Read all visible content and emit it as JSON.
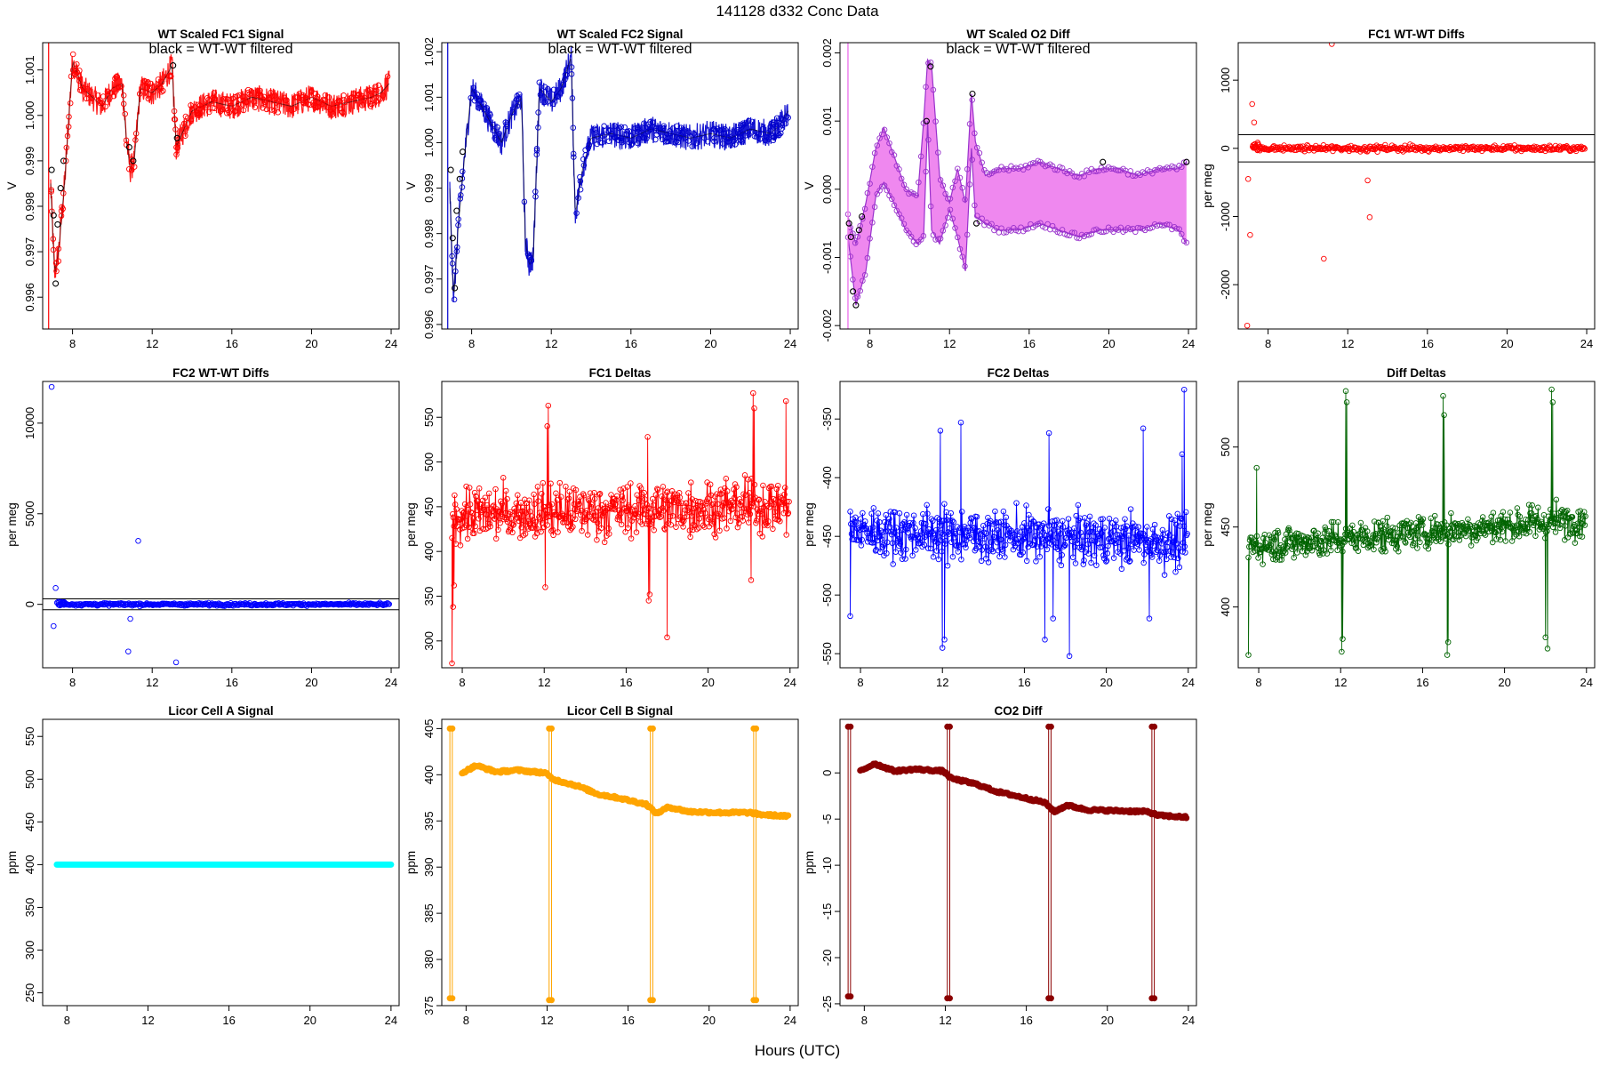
{
  "figure": {
    "title": "141128    d332    Conc Data",
    "xlabel": "Hours (UTC)"
  },
  "chart_data": [
    {
      "type": "line",
      "title": "WT Scaled FC1 Signal",
      "ylabel": "V",
      "annotation": "black = WT-WT filtered",
      "color": "#ff0000",
      "xlim": [
        6.5,
        24.4
      ],
      "ylim": [
        0.9953,
        1.0016
      ],
      "xticks": [
        8,
        12,
        16,
        20,
        24
      ],
      "yticks": [
        0.996,
        0.997,
        0.998,
        0.999,
        1.0,
        1.001
      ],
      "ytick_labels": [
        "0.996",
        "0.997",
        "0.998",
        "0.999",
        "1.000",
        "1.001"
      ],
      "series": [
        {
          "style": "band",
          "x": [
            6.9,
            7.1,
            7.3,
            7.6,
            8.0,
            8.5,
            9.0,
            9.5,
            10.0,
            10.5,
            10.7,
            10.9,
            11.1,
            11.4,
            12.0,
            12.5,
            13.0,
            13.2,
            13.6,
            14.0,
            15.0,
            16.0,
            17.0,
            18.0,
            19.0,
            20.0,
            21.0,
            22.0,
            23.0,
            23.5,
            23.9
          ],
          "values": [
            0.9985,
            0.9965,
            0.997,
            0.9985,
            1.0012,
            1.0006,
            1.0004,
            1.0002,
            1.0006,
            1.0007,
            0.9995,
            0.9988,
            0.999,
            1.0006,
            1.0005,
            1.0007,
            1.0011,
            0.9993,
            0.9997,
            1.0001,
            1.0003,
            1.0002,
            1.0004,
            1.0003,
            1.0002,
            1.0004,
            1.0002,
            1.0003,
            1.0004,
            1.0005,
            1.0007
          ],
          "spread": 0.0003
        },
        {
          "style": "points",
          "name": "",
          "color": "#000000",
          "x": [
            6.95,
            7.05,
            7.15,
            7.25,
            7.4,
            7.55,
            10.85,
            11.05,
            13.05,
            13.25
          ],
          "values": [
            0.9988,
            0.9978,
            0.9963,
            0.9976,
            0.9984,
            0.999,
            0.9993,
            0.999,
            1.0011,
            0.9995
          ]
        }
      ]
    },
    {
      "type": "line",
      "title": "WT Scaled FC2 Signal",
      "ylabel": "V",
      "annotation": "black = WT-WT filtered",
      "color": "#0000cd",
      "xlim": [
        6.5,
        24.4
      ],
      "ylim": [
        0.9959,
        1.0022
      ],
      "xticks": [
        8,
        12,
        16,
        20,
        24
      ],
      "yticks": [
        0.996,
        0.997,
        0.998,
        0.999,
        1.0,
        1.001,
        1.002
      ],
      "ytick_labels": [
        "0.996",
        "0.997",
        "0.998",
        "0.999",
        "1.000",
        "1.001",
        "1.002"
      ],
      "series": [
        {
          "style": "band",
          "x": [
            6.9,
            7.1,
            7.3,
            7.6,
            8.0,
            8.5,
            9.0,
            9.5,
            10.0,
            10.5,
            10.7,
            10.9,
            11.1,
            11.4,
            12.0,
            12.5,
            13.0,
            13.2,
            13.6,
            14.0,
            15.0,
            16.0,
            17.0,
            18.0,
            19.0,
            20.0,
            21.0,
            22.0,
            23.0,
            23.5,
            23.9
          ],
          "values": [
            0.999,
            0.9965,
            0.998,
            0.9995,
            1.0012,
            1.0008,
            1.0004,
            1.0,
            1.0006,
            1.001,
            0.9978,
            0.9973,
            0.9975,
            1.0012,
            1.0009,
            1.0012,
            1.0019,
            0.9984,
            0.9995,
            1.0001,
            1.0002,
            1.0001,
            1.0003,
            1.0002,
            1.0001,
            1.0002,
            1.0001,
            1.0003,
            1.0002,
            1.0004,
            1.0007
          ],
          "spread": 0.0003
        },
        {
          "style": "points",
          "name": "",
          "color": "#000000",
          "x": [
            6.95,
            7.05,
            7.15,
            7.25,
            7.4,
            7.55
          ],
          "values": [
            0.9994,
            0.9979,
            0.9968,
            0.9985,
            0.9992,
            0.9998
          ]
        }
      ]
    },
    {
      "type": "line",
      "title": "WT Scaled O2 Diff",
      "ylabel": "V",
      "annotation": "black = WT-WT filtered",
      "color": "#9932cc",
      "band_color": "#ee82ee",
      "xlim": [
        6.5,
        24.4
      ],
      "ylim": [
        -0.00205,
        0.00215
      ],
      "xticks": [
        8,
        12,
        16,
        20,
        24
      ],
      "yticks": [
        -0.002,
        -0.001,
        0.0,
        0.001,
        0.002
      ],
      "ytick_labels": [
        "-0.002",
        "-0.001",
        "0.000",
        "0.001",
        "0.002"
      ],
      "series": [
        {
          "style": "envelope",
          "x": [
            6.9,
            7.3,
            7.8,
            8.3,
            8.7,
            9.2,
            9.8,
            10.4,
            10.7,
            10.9,
            11.1,
            11.5,
            12.0,
            12.4,
            12.8,
            13.1,
            13.3,
            13.8,
            14.5,
            15.5,
            16.5,
            17.5,
            18.5,
            19.5,
            20.5,
            21.5,
            22.5,
            23.5,
            23.9
          ],
          "upper": [
            -0.0004,
            -0.0008,
            -0.0002,
            0.0006,
            0.0009,
            0.0005,
            0.0,
            -0.0001,
            0.001,
            0.0019,
            0.0018,
            0.0002,
            -0.0002,
            0.0003,
            -0.0002,
            0.0014,
            0.0007,
            0.0002,
            0.0003,
            0.0003,
            0.0004,
            0.0003,
            0.0002,
            0.0003,
            0.0003,
            0.0002,
            0.0003,
            0.0003,
            0.0004
          ],
          "lower": [
            -0.0007,
            -0.0017,
            -0.0012,
            -0.0001,
            0.0001,
            -0.0002,
            -0.0006,
            -0.0008,
            -0.0007,
            0.001,
            -0.0006,
            -0.0008,
            -0.0003,
            -0.0007,
            -0.0012,
            0.0006,
            -0.0004,
            -0.0005,
            -0.0006,
            -0.0006,
            -0.0005,
            -0.0006,
            -0.0007,
            -0.0006,
            -0.0006,
            -0.0006,
            -0.0005,
            -0.0006,
            -0.0008
          ]
        },
        {
          "style": "points",
          "name": "",
          "color": "#000000",
          "x": [
            6.95,
            7.05,
            7.15,
            7.3,
            7.45,
            7.6,
            10.85,
            11.05,
            13.15,
            13.35,
            19.7,
            23.9
          ],
          "values": [
            -0.0005,
            -0.0007,
            -0.0015,
            -0.0017,
            -0.0006,
            -0.0004,
            0.001,
            0.0018,
            0.0014,
            -0.0005,
            0.0004,
            0.0004
          ]
        }
      ]
    },
    {
      "type": "scatter",
      "title": "FC1 WT-WT Diffs",
      "ylabel": "per meg",
      "color": "#ff0000",
      "xlim": [
        6.5,
        24.4
      ],
      "ylim": [
        -2650,
        1550
      ],
      "xticks": [
        8,
        12,
        16,
        20,
        24
      ],
      "yticks": [
        -2000,
        -1000,
        0,
        1000
      ],
      "ytick_labels": [
        "-2000",
        "-1000",
        "0",
        "1000"
      ],
      "hlines": [
        200,
        -200
      ],
      "noise": 35,
      "spikes": [
        {
          "x": 6.95,
          "y": -2600
        },
        {
          "x": 7.1,
          "y": -1270
        },
        {
          "x": 7.0,
          "y": -450
        },
        {
          "x": 7.2,
          "y": 650
        },
        {
          "x": 7.3,
          "y": 380
        },
        {
          "x": 10.8,
          "y": -1620
        },
        {
          "x": 11.2,
          "y": 1530
        },
        {
          "x": 13.0,
          "y": -470
        },
        {
          "x": 13.1,
          "y": -1010
        }
      ]
    },
    {
      "type": "scatter",
      "title": "FC2 WT-WT Diffs",
      "ylabel": "per meg",
      "color": "#0000ff",
      "xlim": [
        6.5,
        24.4
      ],
      "ylim": [
        -3500,
        12300
      ],
      "xticks": [
        8,
        12,
        16,
        20,
        24
      ],
      "yticks": [
        0,
        5000,
        10000
      ],
      "ytick_labels": [
        "0",
        "5000",
        "10000"
      ],
      "hlines": [
        300,
        -300
      ],
      "noise": 60,
      "spikes": [
        {
          "x": 6.95,
          "y": 12000
        },
        {
          "x": 7.05,
          "y": -1200
        },
        {
          "x": 7.15,
          "y": 900
        },
        {
          "x": 10.8,
          "y": -2600
        },
        {
          "x": 10.9,
          "y": -800
        },
        {
          "x": 11.3,
          "y": 3500
        },
        {
          "x": 13.2,
          "y": -3200
        }
      ]
    },
    {
      "type": "line",
      "title": "FC1 Deltas",
      "ylabel": "per meg",
      "color": "#ff0000",
      "xlim": [
        7.0,
        24.4
      ],
      "ylim": [
        270,
        590
      ],
      "xticks": [
        8,
        12,
        16,
        20,
        24
      ],
      "yticks": [
        300,
        350,
        400,
        450,
        500,
        550
      ],
      "ytick_labels": [
        "300",
        "350",
        "400",
        "450",
        "500",
        "550"
      ],
      "base": [
        440,
        452
      ],
      "noise": 25,
      "spikes": [
        {
          "x": 7.5,
          "y": 275
        },
        {
          "x": 7.55,
          "y": 338
        },
        {
          "x": 7.6,
          "y": 362
        },
        {
          "x": 12.2,
          "y": 563
        },
        {
          "x": 12.15,
          "y": 540
        },
        {
          "x": 12.05,
          "y": 360
        },
        {
          "x": 17.05,
          "y": 528
        },
        {
          "x": 17.1,
          "y": 345
        },
        {
          "x": 17.15,
          "y": 352
        },
        {
          "x": 18.0,
          "y": 304
        },
        {
          "x": 22.2,
          "y": 577
        },
        {
          "x": 22.25,
          "y": 560
        },
        {
          "x": 22.1,
          "y": 368
        },
        {
          "x": 23.8,
          "y": 568
        }
      ]
    },
    {
      "type": "line",
      "title": "FC2 Deltas",
      "ylabel": "per meg",
      "color": "#0000ff",
      "xlim": [
        7.0,
        24.4
      ],
      "ylim": [
        -562,
        -318
      ],
      "xticks": [
        8,
        12,
        16,
        20,
        24
      ],
      "yticks": [
        -550,
        -500,
        -450,
        -400,
        -350
      ],
      "ytick_labels": [
        "-550",
        "-500",
        "-450",
        "-400",
        "-350"
      ],
      "base": [
        -445,
        -455
      ],
      "noise": 18,
      "spikes": [
        {
          "x": 7.5,
          "y": -518
        },
        {
          "x": 12.0,
          "y": -545
        },
        {
          "x": 12.1,
          "y": -538
        },
        {
          "x": 11.9,
          "y": -360
        },
        {
          "x": 12.9,
          "y": -353
        },
        {
          "x": 17.2,
          "y": -362
        },
        {
          "x": 17.0,
          "y": -538
        },
        {
          "x": 17.4,
          "y": -520
        },
        {
          "x": 18.2,
          "y": -552
        },
        {
          "x": 21.8,
          "y": -358
        },
        {
          "x": 22.1,
          "y": -520
        },
        {
          "x": 23.8,
          "y": -325
        },
        {
          "x": 23.7,
          "y": -380
        }
      ]
    },
    {
      "type": "line",
      "title": "Diff Deltas",
      "ylabel": "per meg",
      "color": "#006400",
      "xlim": [
        7.0,
        24.4
      ],
      "ylim": [
        362,
        541
      ],
      "xticks": [
        8,
        12,
        16,
        20,
        24
      ],
      "yticks": [
        400,
        450,
        500
      ],
      "ytick_labels": [
        "400",
        "450",
        "500"
      ],
      "base": [
        438,
        455
      ],
      "noise": 9,
      "spikes": [
        {
          "x": 7.5,
          "y": 370
        },
        {
          "x": 7.9,
          "y": 487
        },
        {
          "x": 12.05,
          "y": 372
        },
        {
          "x": 12.1,
          "y": 380
        },
        {
          "x": 12.25,
          "y": 535
        },
        {
          "x": 12.3,
          "y": 528
        },
        {
          "x": 17.0,
          "y": 532
        },
        {
          "x": 17.05,
          "y": 520
        },
        {
          "x": 17.2,
          "y": 370
        },
        {
          "x": 17.25,
          "y": 378
        },
        {
          "x": 22.1,
          "y": 374
        },
        {
          "x": 22.0,
          "y": 381
        },
        {
          "x": 22.3,
          "y": 536
        },
        {
          "x": 22.35,
          "y": 528
        }
      ]
    },
    {
      "type": "line",
      "title": "Licor Cell A Signal",
      "ylabel": "ppm",
      "color": "#00ffff",
      "xlim": [
        6.8,
        24.4
      ],
      "ylim": [
        235,
        570
      ],
      "xticks": [
        8,
        12,
        16,
        20,
        24
      ],
      "yticks": [
        250,
        300,
        350,
        400,
        450,
        500,
        550
      ],
      "ytick_labels": [
        "250",
        "300",
        "350",
        "400",
        "450",
        "500",
        "550"
      ],
      "series": [
        {
          "style": "thick",
          "x": [
            7.5,
            24.0
          ],
          "values": [
            400,
            400
          ]
        }
      ]
    },
    {
      "type": "line",
      "title": "Licor Cell B Signal",
      "ylabel": "ppm",
      "color": "#ffa500",
      "xlim": [
        6.8,
        24.4
      ],
      "ylim": [
        375,
        406
      ],
      "xticks": [
        8,
        12,
        16,
        20,
        24
      ],
      "yticks": [
        375,
        380,
        385,
        390,
        395,
        400,
        405
      ],
      "ytick_labels": [
        "375",
        "380",
        "385",
        "390",
        "395",
        "400",
        "405"
      ],
      "levels": [
        [
          7.8,
          400.2
        ],
        [
          8.5,
          401.0
        ],
        [
          9.5,
          400.3
        ],
        [
          10.5,
          400.5
        ],
        [
          11.9,
          400.2
        ],
        [
          12.3,
          399.5
        ],
        [
          13.5,
          398.8
        ],
        [
          14.5,
          397.9
        ],
        [
          15.5,
          397.5
        ],
        [
          16.9,
          396.8
        ],
        [
          17.4,
          395.8
        ],
        [
          18.0,
          396.5
        ],
        [
          19.0,
          396.0
        ],
        [
          20.5,
          395.9
        ],
        [
          22.0,
          395.9
        ],
        [
          22.5,
          395.7
        ],
        [
          23.9,
          395.5
        ]
      ],
      "drops": [
        {
          "x": 7.2,
          "high": 405,
          "low": 375.8
        },
        {
          "x": 12.1,
          "high": 405,
          "low": 375.6
        },
        {
          "x": 17.1,
          "high": 405,
          "low": 375.6
        },
        {
          "x": 22.2,
          "high": 405,
          "low": 375.6
        }
      ]
    },
    {
      "type": "line",
      "title": "CO2 Diff",
      "ylabel": "ppm",
      "color": "#8b0000",
      "xlim": [
        6.8,
        24.4
      ],
      "ylim": [
        -25.2,
        5.8
      ],
      "xticks": [
        8,
        12,
        16,
        20,
        24
      ],
      "yticks": [
        -25,
        -20,
        -15,
        -10,
        -5,
        0
      ],
      "ytick_labels": [
        "-25",
        "-20",
        "-15",
        "-10",
        "-5",
        "0"
      ],
      "levels": [
        [
          7.8,
          0.2
        ],
        [
          8.5,
          1.0
        ],
        [
          9.5,
          0.2
        ],
        [
          10.5,
          0.4
        ],
        [
          11.9,
          0.2
        ],
        [
          12.3,
          -0.6
        ],
        [
          13.5,
          -1.2
        ],
        [
          14.5,
          -2.0
        ],
        [
          15.5,
          -2.5
        ],
        [
          16.9,
          -3.2
        ],
        [
          17.4,
          -4.2
        ],
        [
          18.0,
          -3.5
        ],
        [
          19.0,
          -4.0
        ],
        [
          20.5,
          -4.1
        ],
        [
          22.0,
          -4.2
        ],
        [
          22.5,
          -4.6
        ],
        [
          23.9,
          -4.8
        ]
      ],
      "drops": [
        {
          "x": 7.2,
          "high": 5,
          "low": -24.2
        },
        {
          "x": 12.1,
          "high": 5,
          "low": -24.4
        },
        {
          "x": 17.1,
          "high": 5,
          "low": -24.4
        },
        {
          "x": 22.2,
          "high": 5,
          "low": -24.4
        }
      ]
    }
  ]
}
